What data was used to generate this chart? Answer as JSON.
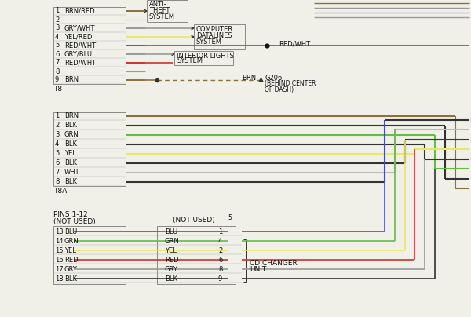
{
  "bg_color": "#f0f0e8",
  "wire_colors": {
    "BRN": "#8B7040",
    "BLK": "#333333",
    "GRN": "#66bb44",
    "YEL": "#e8e866",
    "WHT": "#bbbbbb",
    "RED": "#cc3333",
    "BLU": "#4455cc",
    "GRY": "#999999"
  },
  "top_pins_y": [
    12,
    22,
    32,
    42,
    52,
    62,
    72,
    82,
    92
  ],
  "top_labels": [
    "BRN/RED",
    "",
    "GRY/WHT",
    "YEL/RED",
    "RED/WHT",
    "GRY/BLU",
    "RED/WHT",
    "",
    "BRN"
  ],
  "top_nums": [
    "1",
    "2",
    "3",
    "4",
    "5",
    "6",
    "7",
    "8",
    "9"
  ],
  "top_colors": [
    "BRN",
    "GRY",
    "GRY",
    "YEL",
    "RED",
    "GRY",
    "RED",
    "GRY",
    "BRN"
  ],
  "mid_pins_y": [
    148,
    158,
    168,
    178,
    188,
    198,
    208,
    218
  ],
  "mid_labels": [
    "BRN",
    "BLK",
    "GRN",
    "BLK",
    "YEL",
    "BLK",
    "WHT",
    "BLK"
  ],
  "mid_nums": [
    "1",
    "2",
    "3",
    "4",
    "5",
    "6",
    "7",
    "8"
  ],
  "mid_colors": [
    "BRN",
    "BLK",
    "GRN",
    "BLK",
    "YEL",
    "BLK",
    "WHT",
    "BLK"
  ],
  "bot_pins_y": [
    303,
    315,
    327,
    339,
    351,
    363
  ],
  "bot_nums_l": [
    "13",
    "14",
    "15",
    "16",
    "17",
    "18"
  ],
  "bot_labels_l": [
    "BLU",
    "GRN",
    "YEL",
    "RED",
    "GRY",
    "BLK"
  ],
  "bot_labels_r": [
    "BLU",
    "GRN",
    "YEL",
    "RED",
    "GRY",
    "BLK"
  ],
  "bot_pins_r": [
    "1",
    "4",
    "2",
    "6",
    "8",
    "9"
  ],
  "bot_colors": [
    "BLU",
    "GRN",
    "YEL",
    "RED",
    "GRY",
    "BLK"
  ]
}
